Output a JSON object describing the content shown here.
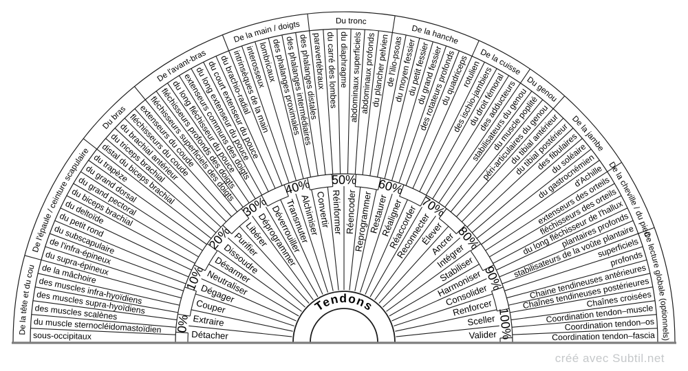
{
  "title": "Tendons",
  "footer": {
    "text": "créé avec Subtil.net"
  },
  "percent_labels": [
    "0%",
    "10%",
    "20%",
    "30%",
    "40%",
    "50%",
    "60%",
    "70%",
    "80%",
    "90%",
    "100%"
  ],
  "actions": [
    "Détacher",
    "Extraire",
    "Couper",
    "Dégager",
    "Neutraliser",
    "Désarmer",
    "Dissoudre",
    "Purifier",
    "Libérer",
    "Déprogrammer",
    "Déverrouiller",
    "Transmuter",
    "Alchimiser",
    "Convertir",
    "Réinformer",
    "Réencoder",
    "Reprogrammer",
    "Restaurer",
    "Réaligner",
    "Réaccorder",
    "Reconnecter",
    "Élever",
    "Ancrer",
    "Intégrer",
    "Stabiliser",
    "Harmoniser",
    "Consolider",
    "Renforcer",
    "Sceller",
    "Valider"
  ],
  "categories": [
    {
      "label": "De la tête et du cou",
      "items": [
        "sous-occipitaux",
        "du muscle sternocléidomastoïdien",
        "des muscles scalènes",
        "des muscles supra-hyoïdiens",
        "des muscles infra-hyoïdiens",
        "de la mâchoire"
      ]
    },
    {
      "label": "De l'épaule / ceinture scapulaire",
      "items": [
        "du supra-épineux",
        "de l'infra-épineux",
        "du subscapulaire",
        "du petit rond",
        "du deltoïde",
        "du biceps brachial",
        "du grand pectoral",
        "du grand dorsal",
        "du trapèze"
      ]
    },
    {
      "label": "Du bras",
      "items": [
        "distal du biceps brachial",
        "du triceps brachial",
        "du brachial antérieur",
        "fléchisseurs du coude",
        "extenseurs du coude"
      ]
    },
    {
      "label": "De l'avant-bras",
      "items": [
        "fléchisseurs superficiels des doigts",
        "fléchisseurs profonds des doigts",
        "du long fléchisseur du pouce",
        "extenseurs communs des doigts",
        "du long extenseur du pouce",
        "du court extenseur du pouce",
        "du brachio-radial"
      ]
    },
    {
      "label": "De la main / doigts",
      "items": [
        "intrinsèques de la main",
        "interosseux",
        "lombricaux",
        "des phalanges proximales",
        "des phalanges intermédiaires",
        "des phalanges distales"
      ]
    },
    {
      "label": "Du tronc",
      "items": [
        "paravertébraux",
        "du carré des lombes",
        "du diaphragme",
        "abdominaux superficiels",
        "abdominaux profonds",
        "du plancher pelvien"
      ]
    },
    {
      "label": "De la hanche",
      "items": [
        "de l'ilio-psoas",
        "du moyen fessier",
        "du petit fessier",
        "du grand fessier",
        "des rotateurs profonds",
        "du quadriceps"
      ]
    },
    {
      "label": "De la cuisse",
      "items": [
        "rotulien",
        "des ischio-jambiers",
        "du droit fémoral",
        "des adducteurs"
      ]
    },
    {
      "label": "Du genou",
      "items": [
        "stabilisateurs du genou",
        "du muscle poplité",
        "péri-articulaires du genou"
      ]
    },
    {
      "label": "De la jambe",
      "items": [
        "du tibial antérieur",
        "du tibial postérieur",
        "des fibulaires",
        "du soléaire",
        "du gastrocnémien",
        "d'Achille"
      ]
    },
    {
      "label": "De la cheville / du pied",
      "items": [
        "extenseurs des orteils",
        "fléchisseurs des orteils",
        "du long fléchisseur de l'hallux",
        "plantaires profonds",
        "stabilisateurs de la voûte plantaire"
      ]
    },
    {
      "label": "De lecture globale (optionnels)",
      "items": [
        "superficiels",
        "profonds",
        "Chaine tendineuses antérieures",
        "Chaînes tendineuses postérieures",
        "Chaînes croisées",
        "Coordination tendon–muscle",
        "Coordination tendon–os",
        "Coordination tendon–fascia"
      ]
    }
  ],
  "colors": {
    "background": "#ffffff",
    "line": "#1c1c1c",
    "baseline": "#7d7d7d",
    "text": "#000000",
    "footer_text": "#c5c8ca"
  }
}
